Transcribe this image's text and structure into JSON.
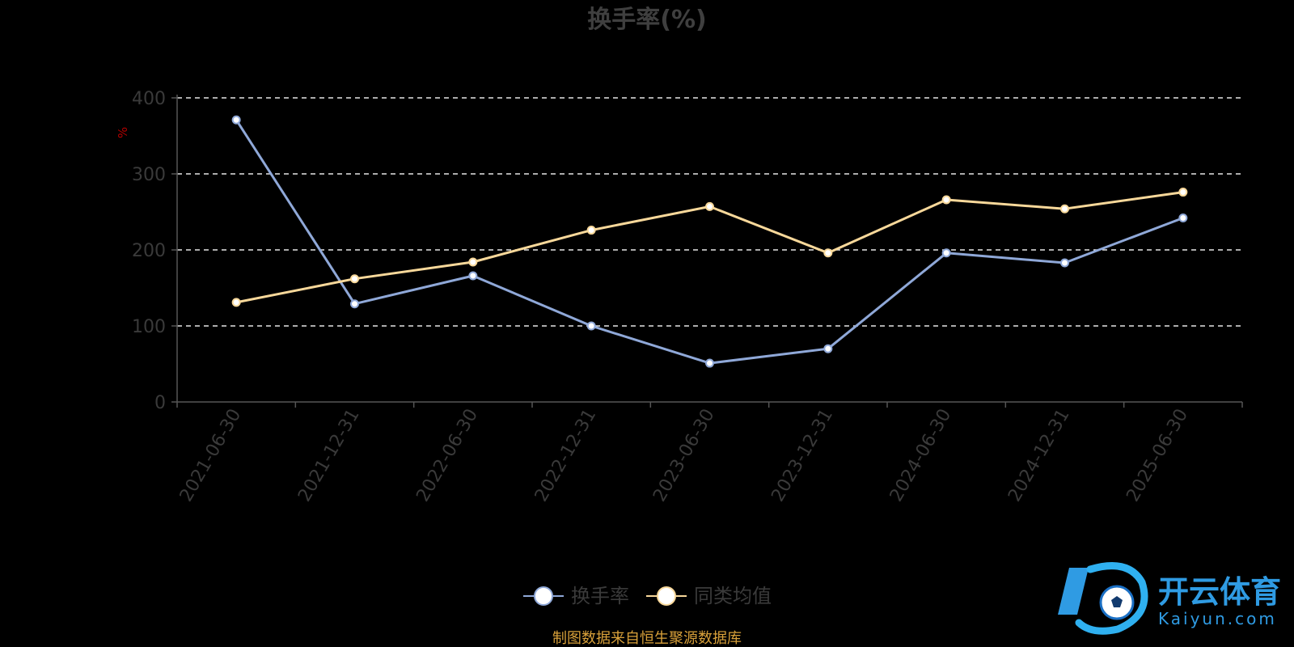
{
  "chart_data": {
    "type": "line",
    "title": "换手率(%)",
    "ylabel": "%",
    "categories": [
      "2021-06-30",
      "2021-12-31",
      "2022-06-30",
      "2022-12-31",
      "2023-06-30",
      "2023-12-31",
      "2024-06-30",
      "2024-12-31",
      "2025-06-30"
    ],
    "ylim": [
      0,
      400
    ],
    "yticks": [
      0,
      100,
      200,
      300,
      400
    ],
    "grid": true,
    "legend_position": "bottom-center",
    "series": [
      {
        "name": "换手率",
        "color": "#8fa8d8",
        "values": [
          371,
          129,
          166,
          100,
          51,
          70,
          196,
          183,
          242
        ]
      },
      {
        "name": "同类均值",
        "color": "#f8d89a",
        "values": [
          131,
          162,
          184,
          226,
          257,
          196,
          266,
          254,
          276
        ]
      }
    ]
  },
  "footer": {
    "source": "制图数据来自恒生聚源数据库"
  },
  "watermark": {
    "brand": "开云体育",
    "domain": "Kaiyun.com"
  }
}
